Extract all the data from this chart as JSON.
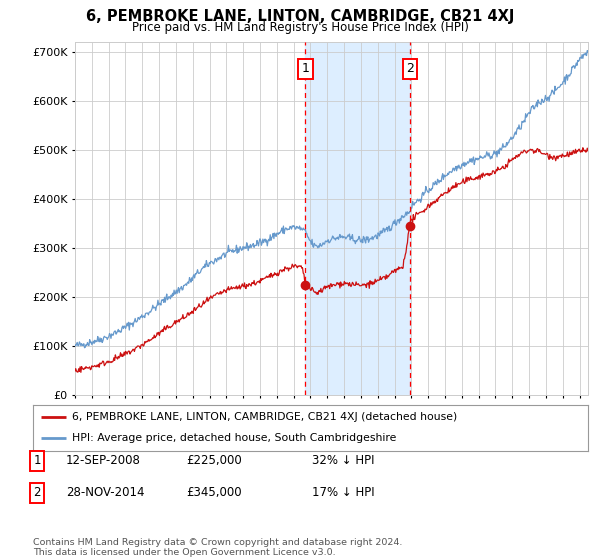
{
  "title": "6, PEMBROKE LANE, LINTON, CAMBRIDGE, CB21 4XJ",
  "subtitle": "Price paid vs. HM Land Registry's House Price Index (HPI)",
  "legend_line1": "6, PEMBROKE LANE, LINTON, CAMBRIDGE, CB21 4XJ (detached house)",
  "legend_line2": "HPI: Average price, detached house, South Cambridgeshire",
  "footer": "Contains HM Land Registry data © Crown copyright and database right 2024.\nThis data is licensed under the Open Government Licence v3.0.",
  "transaction1": {
    "label": "1",
    "date": "12-SEP-2008",
    "price": "£225,000",
    "pct": "32% ↓ HPI"
  },
  "transaction2": {
    "label": "2",
    "date": "28-NOV-2014",
    "price": "£345,000",
    "pct": "17% ↓ HPI"
  },
  "vline1_year": 2008.7,
  "vline2_year": 2014.92,
  "point1": [
    2008.7,
    225000
  ],
  "point2": [
    2014.92,
    345000
  ],
  "shade_start": 2008.7,
  "shade_end": 2014.92,
  "ylim": [
    0,
    720000
  ],
  "xlim_start": 1995,
  "xlim_end": 2025.5,
  "hpi_color": "#6699cc",
  "price_color": "#cc1111",
  "bg_color": "#ffffff",
  "grid_color": "#cccccc",
  "shade_color": "#ddeeff"
}
